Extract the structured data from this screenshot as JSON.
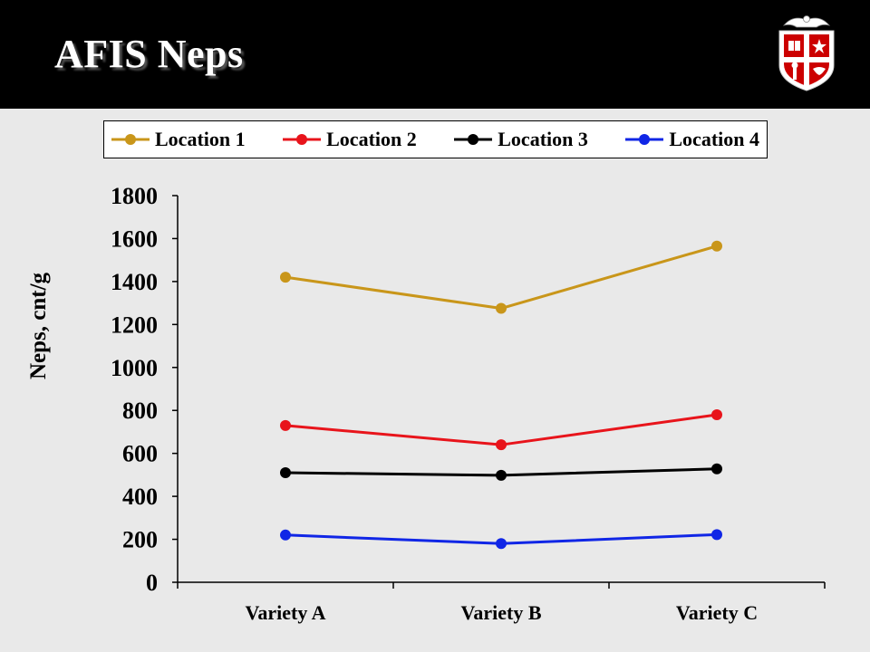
{
  "slide": {
    "title": "AFIS Neps"
  },
  "chart_data": {
    "type": "line",
    "categories": [
      "Variety A",
      "Variety B",
      "Variety C"
    ],
    "series": [
      {
        "name": "Location 1",
        "color": "#c9961a",
        "values": [
          1420,
          1275,
          1565
        ]
      },
      {
        "name": "Location 2",
        "color": "#e8141b",
        "values": [
          730,
          640,
          780
        ]
      },
      {
        "name": "Location 3",
        "color": "#000000",
        "values": [
          510,
          498,
          528
        ]
      },
      {
        "name": "Location 4",
        "color": "#1026e6",
        "values": [
          220,
          180,
          222
        ]
      }
    ],
    "ylabel": "Neps, cnt/g",
    "ylim": [
      0,
      1800
    ],
    "yticks": [
      0,
      200,
      400,
      600,
      800,
      1000,
      1200,
      1400,
      1600,
      1800
    ],
    "legend": "top",
    "grid": false
  },
  "logo": {
    "icon": "university-shield-seal-icon",
    "colors": [
      "#cc0000",
      "#ffffff",
      "#000000"
    ]
  }
}
